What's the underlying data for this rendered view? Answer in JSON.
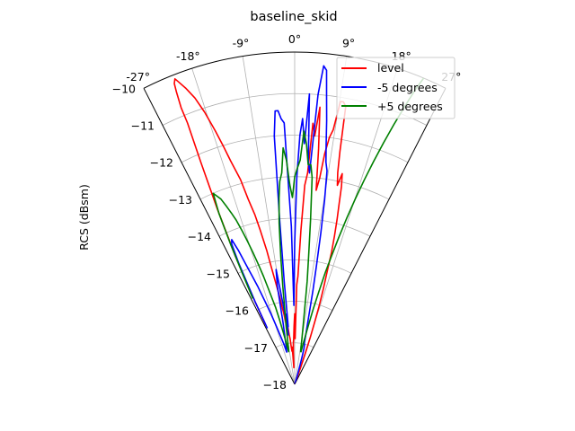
{
  "chart_data": {
    "type": "line",
    "projection": "polar-sector",
    "title": "baseline_skid",
    "ylabel": "RCS (dBsm)",
    "xlabel": "",
    "theta_range_deg": [
      -27,
      27
    ],
    "theta_ticks": [
      "-27°",
      "-18°",
      "-9°",
      "0°",
      "9°",
      "18°",
      "27°"
    ],
    "theta_tick_values": [
      -27,
      -18,
      -9,
      0,
      9,
      18,
      27
    ],
    "r_range": [
      -18,
      -10
    ],
    "r_ticks": [
      "−18",
      "−17",
      "−16",
      "−15",
      "−14",
      "−13",
      "−12",
      "−11",
      "−10"
    ],
    "r_tick_values": [
      -18,
      -17,
      -16,
      -15,
      -14,
      -13,
      -12,
      -11,
      -10
    ],
    "grid": true,
    "legend_position": "top-right",
    "colors": {
      "level": "#ff0000",
      "minus5": "#0000ff",
      "plus5": "#008000"
    },
    "series": [
      {
        "name": "level",
        "color": "#ff0000",
        "points": [
          [
            -26,
            -16.4
          ],
          [
            -25.6,
            -15.8
          ],
          [
            -24.8,
            -14.6
          ],
          [
            -23.8,
            -13.4
          ],
          [
            -22.9,
            -12.2
          ],
          [
            -22.3,
            -11.2
          ],
          [
            -22.3,
            -10.8
          ],
          [
            -22.0,
            -10.4
          ],
          [
            -21.8,
            -10.2
          ],
          [
            -21.4,
            -10.1
          ],
          [
            -21.0,
            -10.2
          ],
          [
            -20.2,
            -10.4
          ],
          [
            -19.2,
            -10.7
          ],
          [
            -18.3,
            -11.1
          ],
          [
            -17.4,
            -11.6
          ],
          [
            -16.7,
            -12.0
          ],
          [
            -16.0,
            -12.4
          ],
          [
            -14.8,
            -12.9
          ],
          [
            -14.1,
            -13.4
          ],
          [
            -13.2,
            -13.8
          ],
          [
            -12.6,
            -14.2
          ],
          [
            -11.8,
            -14.7
          ],
          [
            -11.3,
            -15.1
          ],
          [
            -10.6,
            -15.5
          ],
          [
            -9.9,
            -15.8
          ],
          [
            -9.3,
            -16.1
          ],
          [
            -8.6,
            -16.3
          ],
          [
            -8.1,
            -16.5
          ],
          [
            -7.4,
            -16.5
          ],
          [
            -6.8,
            -16.6
          ],
          [
            -6.3,
            -16.8
          ],
          [
            -5.8,
            -16.9
          ],
          [
            -5.2,
            -17.1
          ],
          [
            -4.6,
            -17.2
          ],
          [
            -4.0,
            -17.1
          ],
          [
            -3.5,
            -17.3
          ],
          [
            -2.9,
            -17.6
          ],
          [
            -2.3,
            -17.2
          ],
          [
            -1.8,
            -17.0
          ],
          [
            -1.2,
            -16.9
          ],
          [
            -0.6,
            -16.6
          ],
          [
            0,
            -16.3
          ],
          [
            0.6,
            -16.9
          ],
          [
            1.2,
            -15.6
          ],
          [
            1.7,
            -15.4
          ],
          [
            2.3,
            -14.3
          ],
          [
            2.9,
            -13.2
          ],
          [
            3.5,
            -12.9
          ],
          [
            4.0,
            -11.7
          ],
          [
            4.6,
            -12.0
          ],
          [
            5.2,
            -11.3
          ],
          [
            5.8,
            -12.3
          ],
          [
            6.3,
            -13.3
          ],
          [
            6.9,
            -13.0
          ],
          [
            7.4,
            -12.4
          ],
          [
            8.0,
            -12.0
          ],
          [
            8.6,
            -11.8
          ],
          [
            9.2,
            -11.1
          ],
          [
            9.8,
            -11.1
          ],
          [
            10.4,
            -11.2
          ],
          [
            11.0,
            -12.3
          ],
          [
            11.5,
            -12.8
          ],
          [
            12.1,
            -13.1
          ],
          [
            12.7,
            -12.8
          ],
          [
            13.3,
            -13.1
          ],
          [
            13.8,
            -13.5
          ],
          [
            14.4,
            -13.9
          ],
          [
            15.0,
            -14.3
          ],
          [
            15.6,
            -14.7
          ],
          [
            16.1,
            -15.2
          ],
          [
            16.7,
            -15.6
          ],
          [
            17.3,
            -16.0
          ],
          [
            17.8,
            -16.4
          ],
          [
            18.4,
            -16.8
          ],
          [
            19.0,
            -17.2
          ],
          [
            19.6,
            -17.6
          ],
          [
            20.1,
            -18.0
          ]
        ]
      },
      {
        "name": "-5 degrees",
        "color": "#0000ff",
        "points": [
          [
            -26,
            -16.5
          ],
          [
            -25.6,
            -15.8
          ],
          [
            -24.8,
            -14.8
          ],
          [
            -24.2,
            -14.3
          ],
          [
            -23.5,
            -14.2
          ],
          [
            -22.8,
            -14.5
          ],
          [
            -22.1,
            -14.9
          ],
          [
            -21.4,
            -15.2
          ],
          [
            -20.6,
            -15.5
          ],
          [
            -19.6,
            -15.9
          ],
          [
            -18.6,
            -16.2
          ],
          [
            -17.6,
            -16.5
          ],
          [
            -16.3,
            -16.8
          ],
          [
            -15.1,
            -17.0
          ],
          [
            -13.9,
            -17.2
          ],
          [
            -12.7,
            -17.1
          ],
          [
            -11.5,
            -16.8
          ],
          [
            -10.7,
            -16.5
          ],
          [
            -10.0,
            -15.6
          ],
          [
            -9.2,
            -15.2
          ],
          [
            -8.8,
            -15.6
          ],
          [
            -8.3,
            -16.0
          ],
          [
            -7.8,
            -16.4
          ],
          [
            -7.4,
            -16.8
          ],
          [
            -6.9,
            -16.3
          ],
          [
            -6.4,
            -16.6
          ],
          [
            -5.8,
            -15.5
          ],
          [
            -5.2,
            -14.0
          ],
          [
            -4.7,
            -12.0
          ],
          [
            -4.1,
            -11.4
          ],
          [
            -3.5,
            -11.4
          ],
          [
            -2.9,
            -11.6
          ],
          [
            -2.3,
            -11.7
          ],
          [
            -1.7,
            -13.4
          ],
          [
            -1.2,
            -14.2
          ],
          [
            -0.6,
            -16.1
          ],
          [
            0,
            -14.6
          ],
          [
            0.6,
            -13.0
          ],
          [
            1.2,
            -12.0
          ],
          [
            1.7,
            -11.6
          ],
          [
            2.3,
            -12.2
          ],
          [
            2.9,
            -11.0
          ],
          [
            3.5,
            -12.6
          ],
          [
            4.0,
            -12.9
          ],
          [
            4.6,
            -11.0
          ],
          [
            5.2,
            -10.3
          ],
          [
            5.8,
            -10.4
          ],
          [
            6.3,
            -11.0
          ],
          [
            6.9,
            -11.6
          ],
          [
            7.5,
            -12.2
          ],
          [
            8.0,
            -12.6
          ],
          [
            8.6,
            -12.8
          ],
          [
            9.2,
            -13.5
          ],
          [
            9.8,
            -14.3
          ],
          [
            10.4,
            -15.1
          ],
          [
            11.0,
            -15.7
          ],
          [
            11.5,
            -16.2
          ],
          [
            12.1,
            -16.6
          ],
          [
            12.7,
            -16.8
          ],
          [
            13.3,
            -17.0
          ],
          [
            13.8,
            -17.0
          ],
          [
            14.4,
            -17.1
          ],
          [
            15.0,
            -17.3
          ],
          [
            15.6,
            -17.5
          ],
          [
            16.1,
            -17.7
          ],
          [
            16.7,
            -17.8
          ],
          [
            17.3,
            -17.9
          ],
          [
            17.8,
            -18.0
          ]
        ]
      },
      {
        "name": "+5 degrees",
        "color": "#008000",
        "points": [
          [
            -26,
            -15.7
          ],
          [
            -25.3,
            -15.1
          ],
          [
            -24.6,
            -14.3
          ],
          [
            -23.9,
            -13.5
          ],
          [
            -23.1,
            -13.0
          ],
          [
            -22.4,
            -13.1
          ],
          [
            -21.7,
            -13.2
          ],
          [
            -21.0,
            -13.4
          ],
          [
            -20.3,
            -13.6
          ],
          [
            -19.6,
            -13.8
          ],
          [
            -18.9,
            -14.1
          ],
          [
            -18.2,
            -14.4
          ],
          [
            -17.5,
            -14.7
          ],
          [
            -16.8,
            -15.0
          ],
          [
            -16.1,
            -15.3
          ],
          [
            -15.4,
            -15.6
          ],
          [
            -14.6,
            -15.9
          ],
          [
            -13.9,
            -16.1
          ],
          [
            -13.2,
            -16.4
          ],
          [
            -12.5,
            -16.7
          ],
          [
            -11.8,
            -16.9
          ],
          [
            -11.1,
            -17.1
          ],
          [
            -10.4,
            -17.2
          ],
          [
            -9.7,
            -17.1
          ],
          [
            -9.0,
            -16.9
          ],
          [
            -8.3,
            -16.6
          ],
          [
            -7.6,
            -16.2
          ],
          [
            -6.9,
            -15.6
          ],
          [
            -6.2,
            -14.9
          ],
          [
            -5.5,
            -14.1
          ],
          [
            -4.8,
            -13.5
          ],
          [
            -4.2,
            -13.1
          ],
          [
            -3.5,
            -12.9
          ],
          [
            -2.8,
            -12.3
          ],
          [
            -2.1,
            -12.6
          ],
          [
            -1.4,
            -13.2
          ],
          [
            -0.7,
            -13.5
          ],
          [
            0,
            -13.0
          ],
          [
            0.7,
            -12.8
          ],
          [
            1.4,
            -12.6
          ],
          [
            2.1,
            -11.9
          ],
          [
            2.8,
            -12.2
          ],
          [
            3.5,
            -12.7
          ],
          [
            4.2,
            -12.7
          ],
          [
            4.8,
            -13.0
          ],
          [
            5.5,
            -14.0
          ],
          [
            6.2,
            -14.9
          ],
          [
            6.9,
            -15.5
          ],
          [
            7.6,
            -16.2
          ],
          [
            8.3,
            -16.6
          ],
          [
            9.0,
            -16.9
          ],
          [
            9.7,
            -17.1
          ],
          [
            10.4,
            -17.2
          ],
          [
            11.1,
            -17.2
          ],
          [
            11.8,
            -17.0
          ],
          [
            12.5,
            -16.8
          ],
          [
            13.2,
            -16.5
          ],
          [
            13.9,
            -16.1
          ],
          [
            14.6,
            -15.7
          ],
          [
            15.3,
            -15.2
          ],
          [
            16.0,
            -14.8
          ],
          [
            16.7,
            -14.3
          ],
          [
            17.4,
            -13.8
          ],
          [
            18.1,
            -13.3
          ],
          [
            18.8,
            -12.8
          ],
          [
            19.5,
            -12.3
          ],
          [
            20.2,
            -11.8
          ],
          [
            20.9,
            -11.3
          ],
          [
            21.6,
            -10.8
          ],
          [
            22.3,
            -10.3
          ],
          [
            23.0,
            -9.9
          ],
          [
            23.8,
            -9.5
          ],
          [
            24.6,
            -9.2
          ]
        ]
      }
    ]
  }
}
